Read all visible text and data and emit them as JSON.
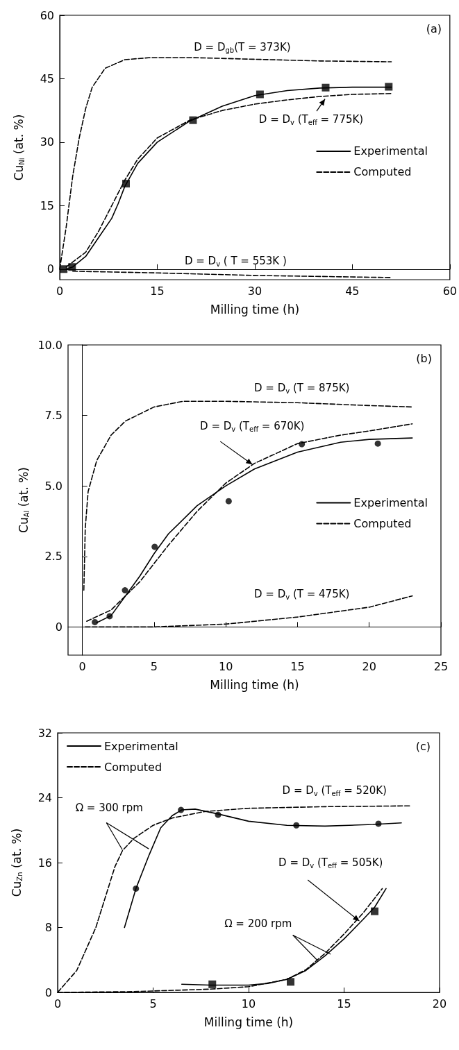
{
  "chart_data": [
    {
      "type": "line",
      "title": "(a)",
      "xlabel": "Milling time (h)",
      "ylabel": "Cu$_{Ni}$ (at. %)",
      "xlim": [
        0,
        60
      ],
      "xticks": [
        0,
        15,
        30,
        45,
        60
      ],
      "ylim": [
        -2.5,
        60
      ],
      "yticks": [
        0,
        15,
        30,
        45,
        60
      ],
      "legend": "right",
      "annotations": [
        "D = D$_{gb}$(T = 373K)",
        {
          "text": "D = D$_{v}$ (T$_{eff}$ = 775K)",
          "x": 40.8,
          "y": 40.2
        },
        "D = D$_{v}$ ( T = 553K )"
      ],
      "series": [
        {
          "type": "scatter",
          "marker": "square",
          "color": "#000000",
          "x": [
            0.6,
            1.9,
            10.2,
            20.5,
            30.8,
            40.9,
            50.6
          ],
          "values": [
            0,
            0.5,
            20.2,
            35.2,
            41.3,
            42.9,
            43.1
          ]
        },
        {
          "type": "line",
          "name": "Experimental",
          "line_style": "solid",
          "color": "#000000",
          "x": [
            1,
            2,
            4,
            6,
            8,
            9,
            10,
            12,
            15,
            20,
            25,
            30,
            35,
            40,
            45,
            51
          ],
          "values": [
            0,
            0.5,
            3,
            7.5,
            12,
            15.5,
            19.5,
            25,
            30,
            35,
            38.5,
            41,
            42.2,
            42.8,
            43,
            43
          ]
        },
        {
          "type": "line",
          "name": "Computed",
          "line_style": "dashed",
          "color": "#000000",
          "x": [
            1,
            4,
            6,
            8,
            10,
            12,
            15,
            20,
            25,
            30,
            35,
            40,
            45,
            51
          ],
          "values": [
            0.5,
            4,
            9,
            15,
            21,
            26,
            31,
            35.2,
            37.5,
            39,
            40,
            40.8,
            41.3,
            41.5
          ]
        },
        {
          "type": "line",
          "line_style": "dashed",
          "color": "#000000",
          "x": [
            0,
            1,
            2,
            3,
            4,
            5,
            7,
            10,
            14,
            20,
            30,
            40,
            51
          ],
          "values": [
            0,
            10,
            22,
            31,
            38,
            43,
            47.5,
            49.5,
            50,
            50,
            49.6,
            49.2,
            49
          ]
        },
        {
          "type": "line",
          "line_style": "dashed",
          "color": "#000000",
          "x": [
            2,
            15,
            30,
            51
          ],
          "values": [
            -0.5,
            -0.9,
            -1.5,
            -2
          ]
        }
      ]
    },
    {
      "type": "line",
      "title": "(b)",
      "xlabel": "Milling time (h)",
      "ylabel": "Cu$_{Al}$ (at. %)",
      "xlim": [
        -1,
        25
      ],
      "xticks": [
        0,
        5,
        10,
        15,
        20,
        25
      ],
      "ylim": [
        -1,
        10
      ],
      "yticks": [
        0,
        {
          "value": 2.5,
          "label": "2.5"
        },
        {
          "value": 5,
          "label": "5.0"
        },
        {
          "value": 7.5,
          "label": "7.5"
        },
        {
          "value": 10,
          "label": "10.0"
        }
      ],
      "legend": "right",
      "annotations": [
        "D = D$_{v}$ (T = 875K)",
        {
          "text": "D = D$_{v}$ (T$_{eff}$ = 670K)",
          "x": 11.85,
          "y": 5.76
        },
        "D = D$_{v}$ (T = 475K)"
      ],
      "series": [
        {
          "type": "scatter",
          "marker": "circle",
          "color": "#000000",
          "x": [
            0.87,
            1.9,
            2.97,
            5.04,
            10.2,
            15.3,
            20.6
          ],
          "values": [
            0.17,
            0.38,
            1.3,
            2.84,
            4.46,
            6.48,
            6.5
          ]
        },
        {
          "type": "line",
          "name": "Experimental",
          "line_style": "solid",
          "color": "#000000",
          "x": [
            1,
            2,
            3,
            4,
            5,
            6,
            8,
            10,
            12,
            15,
            18,
            20,
            23
          ],
          "values": [
            0.15,
            0.4,
            1.1,
            1.8,
            2.6,
            3.3,
            4.3,
            5,
            5.6,
            6.2,
            6.55,
            6.65,
            6.7
          ]
        },
        {
          "type": "line",
          "name": "Computed",
          "line_style": "dashed",
          "color": "#000000",
          "x": [
            0.3,
            2,
            4,
            6,
            8,
            10,
            12,
            15,
            18,
            20,
            23
          ],
          "values": [
            0.2,
            0.6,
            1.6,
            2.9,
            4.1,
            5.1,
            5.8,
            6.5,
            6.8,
            6.95,
            7.2
          ]
        },
        {
          "type": "line",
          "line_style": "dashed",
          "color": "#000000",
          "x": [
            0.1,
            0.2,
            0.4,
            1,
            2,
            3,
            5,
            7,
            10,
            15,
            20,
            23
          ],
          "values": [
            1.3,
            3.5,
            4.8,
            5.9,
            6.8,
            7.3,
            7.8,
            8,
            8,
            7.95,
            7.85,
            7.8
          ]
        },
        {
          "type": "line",
          "line_style": "dashed",
          "color": "#000000",
          "x": [
            0.2,
            5,
            10,
            15,
            20,
            23
          ],
          "values": [
            0,
            0,
            0.1,
            0.35,
            0.7,
            1.1
          ]
        }
      ]
    },
    {
      "type": "line",
      "title": "(c)",
      "xlabel": "Milling time (h)",
      "ylabel": "Cu$_{Zn}$ (at. %)",
      "xlim": [
        0,
        20
      ],
      "xticks": [
        0,
        5,
        10,
        15,
        20
      ],
      "ylim": [
        0,
        32
      ],
      "yticks": [
        0,
        8,
        16,
        24,
        32
      ],
      "legend": "top left",
      "annotations": [
        "D = D$_{v}$ (T$_{eff}$ = 520K)",
        {
          "text": "D = D$_{v}$ (T$_{eff}$ = 505K)",
          "x": 15.8,
          "y": 8.8
        },
        {
          "text": "Ω = 300 rpm",
          "x": 4.77,
          "y": 17.7
        },
        {
          "text": "Ω = 200 rpm",
          "x": 14.3,
          "y": 4.7
        }
      ],
      "series": [
        {
          "type": "scatter",
          "marker": "circle",
          "color": "#000000",
          "x": [
            4.1,
            6.46,
            8.4,
            12.5,
            16.8
          ],
          "values": [
            12.8,
            22.5,
            21.9,
            20.6,
            20.8
          ]
        },
        {
          "type": "scatter",
          "marker": "square",
          "color": "#000000",
          "x": [
            8.1,
            12.2,
            16.6
          ],
          "values": [
            1,
            1.3,
            10
          ]
        },
        {
          "type": "line",
          "name": "Experimental",
          "line_style": "solid",
          "color": "#000000",
          "x": [
            3.5,
            4.1,
            4.8,
            5.4,
            6,
            6.5,
            7.2,
            8.4,
            10,
            12,
            14,
            16.5,
            18
          ],
          "values": [
            8,
            12.8,
            17,
            20.3,
            21.8,
            22.5,
            22.6,
            22,
            21.1,
            20.6,
            20.5,
            20.7,
            20.9
          ]
        },
        {
          "type": "line",
          "line_style": "solid",
          "color": "#000000",
          "x": [
            6.5,
            8,
            10,
            11,
            12,
            13,
            14,
            15,
            16,
            16.6,
            17.2
          ],
          "values": [
            1,
            0.9,
            0.9,
            1.1,
            1.6,
            2.7,
            4.5,
            6.6,
            9,
            10.5,
            12.8
          ]
        },
        {
          "type": "line",
          "name": "Computed",
          "line_style": "dashed",
          "color": "#000000",
          "x": [
            0,
            1,
            2,
            2.4,
            3,
            3.4,
            4,
            5,
            6,
            7.7,
            10,
            14,
            18.5
          ],
          "values": [
            0,
            2.7,
            8,
            11,
            15.5,
            17.5,
            19,
            20.6,
            21.5,
            22.3,
            22.7,
            22.9,
            23
          ]
        },
        {
          "type": "line",
          "line_style": "dashed",
          "color": "#000000",
          "x": [
            0,
            4,
            8,
            10,
            12,
            13,
            14,
            15,
            16,
            17
          ],
          "values": [
            0,
            0.1,
            0.4,
            0.7,
            1.6,
            2.8,
            4.8,
            7.2,
            9.8,
            12.8
          ]
        }
      ]
    }
  ]
}
